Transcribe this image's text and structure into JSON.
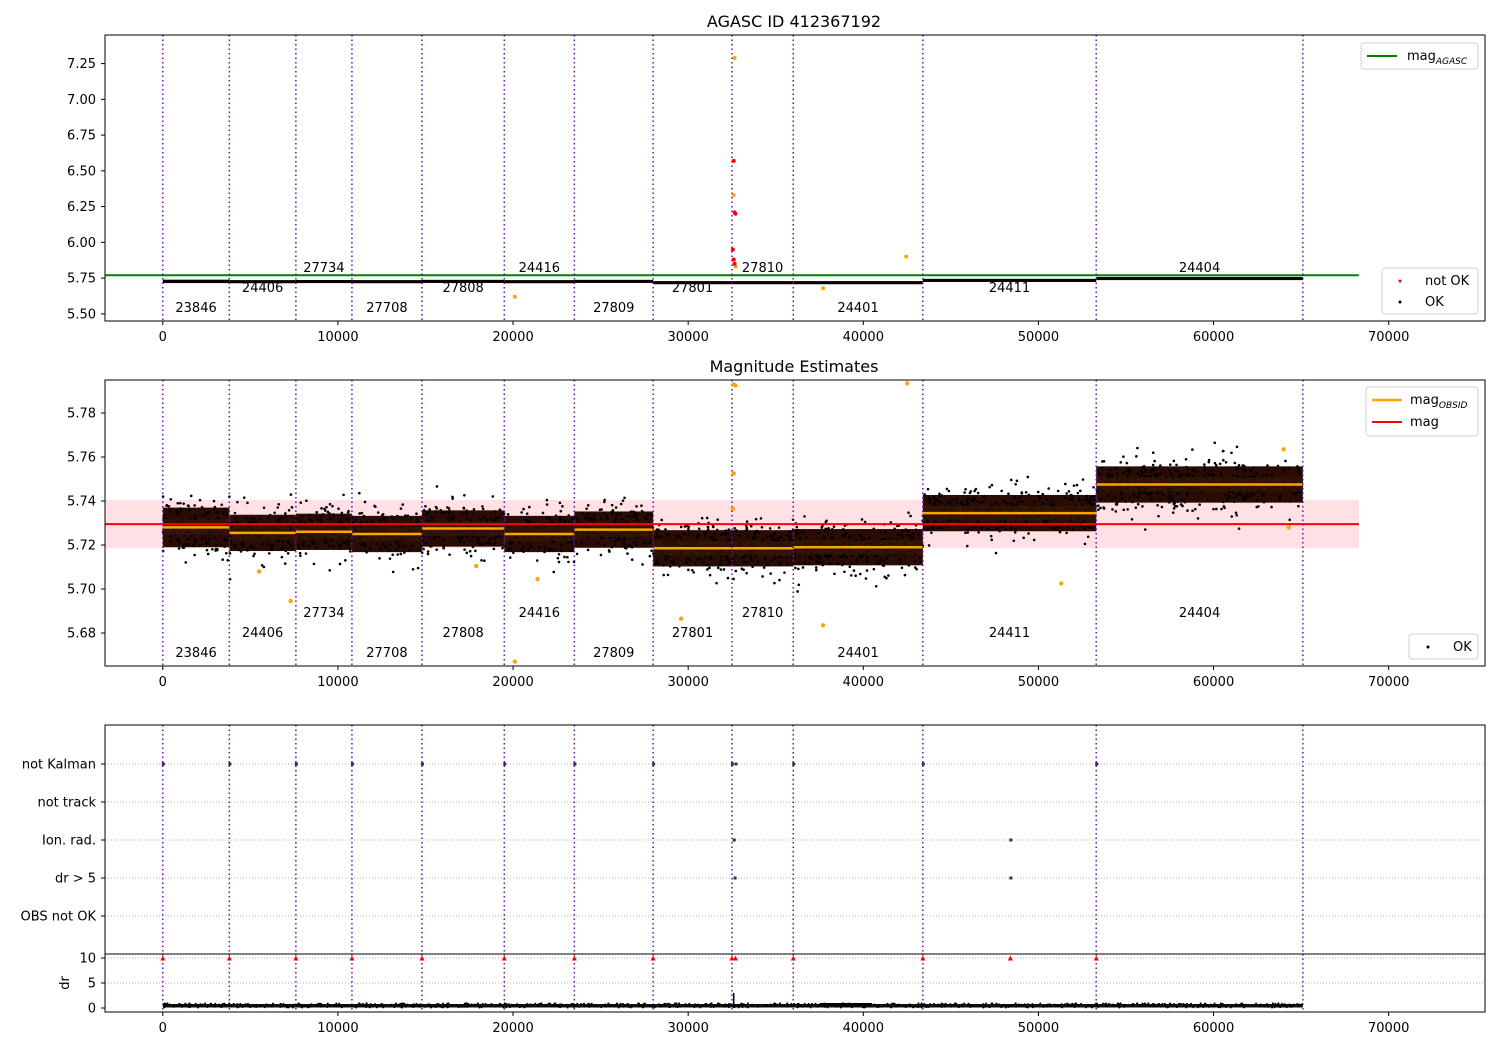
{
  "chart_data": [
    {
      "type": "scatter",
      "panel": "agasc",
      "title": "AGASC ID 412367192",
      "xlabel": "",
      "ylabel": "",
      "xlim": [
        -3300,
        75500
      ],
      "ylim": [
        5.45,
        7.45
      ],
      "x_ticks": [
        0,
        10000,
        20000,
        30000,
        40000,
        50000,
        60000,
        70000
      ],
      "x_tick_labels": [
        "0",
        "10000",
        "20000",
        "30000",
        "40000",
        "50000",
        "60000",
        "70000"
      ],
      "y_ticks": [
        5.5,
        5.75,
        6.0,
        6.25,
        6.5,
        6.75,
        7.0,
        7.25
      ],
      "y_tick_labels": [
        "5.50",
        "5.75",
        "6.00",
        "6.25",
        "6.50",
        "6.75",
        "7.00",
        "7.25"
      ],
      "mag_agasc": 5.77,
      "mag_agasc_x_range": [
        -3300,
        68300
      ],
      "ok_bands": [
        {
          "obsid": "23846",
          "x": [
            0,
            3800
          ],
          "center": 5.727,
          "spread": 0.012
        },
        {
          "obsid": "24406",
          "x": [
            3800,
            7600
          ],
          "center": 5.725,
          "spread": 0.011
        },
        {
          "obsid": "27734",
          "x": [
            7600,
            10800
          ],
          "center": 5.726,
          "spread": 0.011
        },
        {
          "obsid": "27708",
          "x": [
            10800,
            14800
          ],
          "center": 5.725,
          "spread": 0.011
        },
        {
          "obsid": "27808",
          "x": [
            14800,
            19500
          ],
          "center": 5.727,
          "spread": 0.011
        },
        {
          "obsid": "24416",
          "x": [
            19500,
            23500
          ],
          "center": 5.725,
          "spread": 0.011
        },
        {
          "obsid": "27809",
          "x": [
            23500,
            28000
          ],
          "center": 5.727,
          "spread": 0.011
        },
        {
          "obsid": "27801",
          "x": [
            28000,
            32500
          ],
          "center": 5.718,
          "spread": 0.011
        },
        {
          "obsid": "27810",
          "x": [
            32500,
            36000
          ],
          "center": 5.718,
          "spread": 0.011
        },
        {
          "obsid": "24401",
          "x": [
            36000,
            43400
          ],
          "center": 5.718,
          "spread": 0.011
        },
        {
          "obsid": "24411",
          "x": [
            43400,
            53300
          ],
          "center": 5.734,
          "spread": 0.011
        },
        {
          "obsid": "24404",
          "x": [
            53300,
            65100
          ],
          "center": 5.747,
          "spread": 0.011
        }
      ],
      "outliers_not_ok": [
        {
          "x": 32600,
          "y": 6.57
        },
        {
          "x": 32650,
          "y": 6.21
        },
        {
          "x": 32700,
          "y": 6.2
        },
        {
          "x": 32550,
          "y": 5.95
        },
        {
          "x": 32600,
          "y": 5.88
        },
        {
          "x": 32650,
          "y": 5.85
        }
      ],
      "outliers_ok": [
        {
          "x": 32650,
          "y": 7.29
        },
        {
          "x": 32600,
          "y": 6.33
        },
        {
          "x": 32700,
          "y": 5.83
        },
        {
          "x": 42450,
          "y": 5.9
        },
        {
          "x": 20100,
          "y": 5.62
        },
        {
          "x": 37700,
          "y": 5.68
        }
      ],
      "legend_top": {
        "location": "upper-right",
        "entries": [
          "mag_AGASC"
        ]
      },
      "legend_bottom": {
        "location": "lower-right",
        "entries": [
          "not OK",
          "OK"
        ]
      },
      "legend_mag_base": "mag",
      "legend_mag_sub": "AGASC",
      "legend_not_ok": "not OK",
      "legend_ok": "OK"
    },
    {
      "type": "scatter",
      "panel": "estimates",
      "title": "Magnitude Estimates",
      "xlabel": "",
      "ylabel": "",
      "xlim": [
        -3300,
        75500
      ],
      "ylim": [
        5.665,
        5.795
      ],
      "x_ticks": [
        0,
        10000,
        20000,
        30000,
        40000,
        50000,
        60000,
        70000
      ],
      "x_tick_labels": [
        "0",
        "10000",
        "20000",
        "30000",
        "40000",
        "50000",
        "60000",
        "70000"
      ],
      "y_ticks": [
        5.68,
        5.7,
        5.72,
        5.74,
        5.76,
        5.78
      ],
      "y_tick_labels": [
        "5.68",
        "5.70",
        "5.72",
        "5.74",
        "5.76",
        "5.78"
      ],
      "mag": 5.7295,
      "mag_band": [
        5.7185,
        5.7405
      ],
      "mag_x_range": [
        -3300,
        68300
      ],
      "mag_obsid": [
        {
          "obsid": "23846",
          "x": [
            0,
            3800
          ],
          "value": 5.728
        },
        {
          "obsid": "24406",
          "x": [
            3800,
            7600
          ],
          "value": 5.7255
        },
        {
          "obsid": "27734",
          "x": [
            7600,
            10800
          ],
          "value": 5.726
        },
        {
          "obsid": "27708",
          "x": [
            10800,
            14800
          ],
          "value": 5.725
        },
        {
          "obsid": "27808",
          "x": [
            14800,
            19500
          ],
          "value": 5.7275
        },
        {
          "obsid": "24416",
          "x": [
            19500,
            23500
          ],
          "value": 5.725
        },
        {
          "obsid": "27809",
          "x": [
            23500,
            28000
          ],
          "value": 5.727
        },
        {
          "obsid": "27801",
          "x": [
            28000,
            32500
          ],
          "value": 5.7185
        },
        {
          "obsid": "27810",
          "x": [
            32500,
            36000
          ],
          "value": 5.7185
        },
        {
          "obsid": "24401",
          "x": [
            36000,
            43400
          ],
          "value": 5.719
        },
        {
          "obsid": "24411",
          "x": [
            43400,
            53300
          ],
          "value": 5.7345
        },
        {
          "obsid": "24404",
          "x": [
            53300,
            65100
          ],
          "value": 5.7475
        }
      ],
      "outliers": [
        {
          "x": 7300,
          "y": 5.6945
        },
        {
          "x": 5500,
          "y": 5.708
        },
        {
          "x": 17900,
          "y": 5.7105
        },
        {
          "x": 21400,
          "y": 5.7045
        },
        {
          "x": 20100,
          "y": 5.667
        },
        {
          "x": 29600,
          "y": 5.6865
        },
        {
          "x": 37700,
          "y": 5.6835
        },
        {
          "x": 51300,
          "y": 5.7025
        },
        {
          "x": 64300,
          "y": 5.728
        },
        {
          "x": 64000,
          "y": 5.7635
        },
        {
          "x": 32600,
          "y": 5.7525
        },
        {
          "x": 32550,
          "y": 5.7365
        },
        {
          "x": 32600,
          "y": 5.793
        },
        {
          "x": 32700,
          "y": 5.7925
        },
        {
          "x": 42500,
          "y": 5.7935
        }
      ],
      "legend_top": {
        "location": "upper-right",
        "entries": [
          "mag_OBSID",
          "mag"
        ]
      },
      "legend_bottom": {
        "location": "lower-right",
        "entries": [
          "OK"
        ]
      },
      "legend_obsid_base": "mag",
      "legend_obsid_sub": "OBSID",
      "legend_mag": "mag",
      "legend_ok": "OK"
    },
    {
      "type": "scatter",
      "panel": "flags",
      "title": "",
      "xlabel": "",
      "ylabel": "",
      "categories": [
        "not Kalman",
        "not track",
        "Ion. rad.",
        "dr > 5",
        "OBS not OK"
      ],
      "grid": "dotted horizontal",
      "flag_points": [
        {
          "category": "not Kalman",
          "x": [
            0,
            3800,
            7600,
            10800,
            14800,
            19500,
            23500,
            28000,
            32500,
            32700,
            36000,
            43400,
            53300
          ]
        },
        {
          "category": "Ion. rad.",
          "x": [
            32600,
            48400
          ]
        },
        {
          "category": "dr > 5",
          "x": [
            32650,
            48400
          ]
        }
      ]
    },
    {
      "type": "scatter",
      "panel": "dr",
      "title": "",
      "xlabel": "",
      "ylabel": "dr",
      "xlim": [
        -3300,
        75500
      ],
      "ylim": [
        -0.8,
        10.8
      ],
      "x_ticks": [
        0,
        10000,
        20000,
        30000,
        40000,
        50000,
        60000,
        70000
      ],
      "x_tick_labels": [
        "0",
        "10000",
        "20000",
        "30000",
        "40000",
        "50000",
        "60000",
        "70000"
      ],
      "y_ticks": [
        0,
        5,
        10
      ],
      "y_tick_labels": [
        "0",
        "5",
        "10"
      ],
      "clipped_value": 10,
      "clipped_x": [
        0,
        3800,
        7600,
        10800,
        14800,
        19500,
        23500,
        28000,
        32500,
        32700,
        36000,
        43400,
        48400,
        53300
      ],
      "typical_dr": [
        0.1,
        0.8
      ],
      "high_region": {
        "x": [
          37500,
          40500
        ],
        "dr": [
          0.5,
          1.0
        ]
      },
      "spike": {
        "x": 32600,
        "dr": 3
      }
    }
  ],
  "obsid_boundaries": [
    0,
    3800,
    7600,
    10800,
    14800,
    19500,
    23500,
    28000,
    32500,
    36000,
    43400,
    53300,
    65100
  ],
  "obsid_labels": [
    {
      "label": "23846",
      "x": 1900,
      "row": 2
    },
    {
      "label": "24406",
      "x": 5700,
      "row": 1
    },
    {
      "label": "27734",
      "x": 9200,
      "row": 0
    },
    {
      "label": "27708",
      "x": 12800,
      "row": 2
    },
    {
      "label": "27808",
      "x": 17150,
      "row": 1
    },
    {
      "label": "24416",
      "x": 21500,
      "row": 0
    },
    {
      "label": "27809",
      "x": 25750,
      "row": 2
    },
    {
      "label": "27801",
      "x": 30250,
      "row": 1
    },
    {
      "label": "27810",
      "x": 34250,
      "row": 0
    },
    {
      "label": "24401",
      "x": 39700,
      "row": 2
    },
    {
      "label": "24411",
      "x": 48350,
      "row": 1
    },
    {
      "label": "24404",
      "x": 59200,
      "row": 0
    }
  ],
  "colors": {
    "ok": "#000000",
    "not_ok": "#ff0000",
    "outlier": "#ffa500",
    "mag_agasc": "#008000",
    "mag": "#ff0000",
    "mag_obsid": "#ffa500",
    "mag_band": "#ffd6db",
    "boundary": "#6a0dad",
    "flag_grid": "#b0b0b0"
  }
}
